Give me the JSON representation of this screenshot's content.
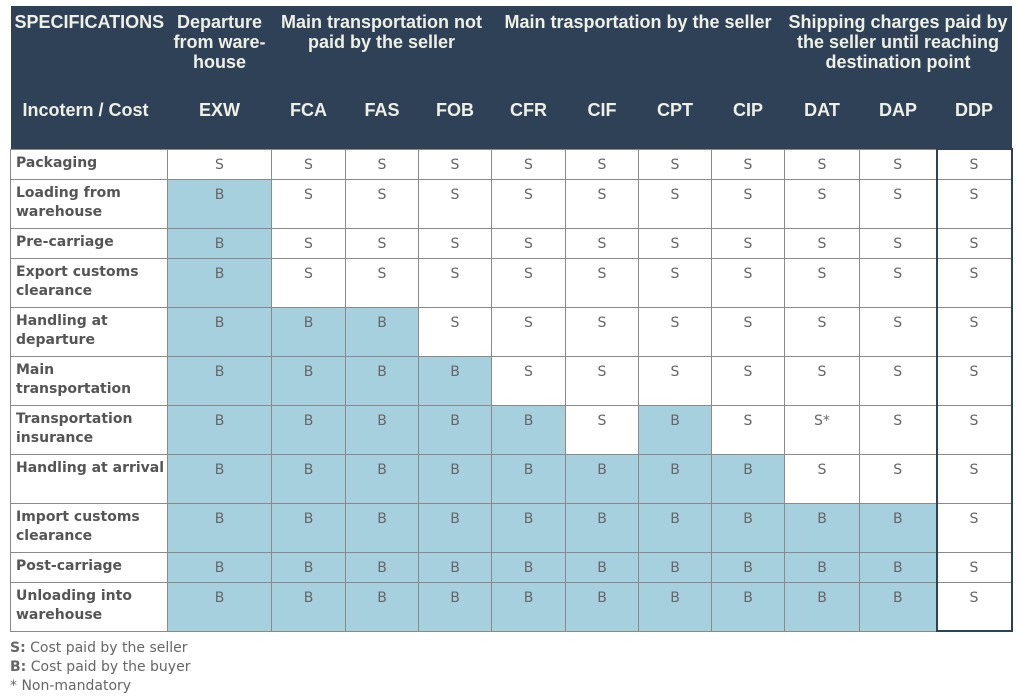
{
  "header": {
    "specifications": "SPECIFICATIONS",
    "row_label": "Incotern / Cost",
    "groups": [
      {
        "label": "Departure from ware- house",
        "span": 1
      },
      {
        "label": "Main transportation not paid by the seller",
        "span": 3
      },
      {
        "label": "Main trasportation by the seller",
        "span": 4
      },
      {
        "label": "Shipping charges paid by the seller until reaching destination point",
        "span": 3
      }
    ],
    "columns": [
      "EXW",
      "FCA",
      "FAS",
      "FOB",
      "CFR",
      "CIF",
      "CPT",
      "CIP",
      "DAT",
      "DAP",
      "DDP"
    ]
  },
  "rows": [
    {
      "label": "Packaging",
      "values": [
        "S",
        "S",
        "S",
        "S",
        "S",
        "S",
        "S",
        "S",
        "S",
        "S",
        "S"
      ]
    },
    {
      "label": "Loading from warehouse",
      "values": [
        "B",
        "S",
        "S",
        "S",
        "S",
        "S",
        "S",
        "S",
        "S",
        "S",
        "S"
      ]
    },
    {
      "label": "Pre-carriage",
      "values": [
        "B",
        "S",
        "S",
        "S",
        "S",
        "S",
        "S",
        "S",
        "S",
        "S",
        "S"
      ]
    },
    {
      "label": "Export customs clearance",
      "values": [
        "B",
        "S",
        "S",
        "S",
        "S",
        "S",
        "S",
        "S",
        "S",
        "S",
        "S"
      ]
    },
    {
      "label": "Handling at departure",
      "values": [
        "B",
        "B",
        "B",
        "S",
        "S",
        "S",
        "S",
        "S",
        "S",
        "S",
        "S"
      ]
    },
    {
      "label": "Main transportation",
      "values": [
        "B",
        "B",
        "B",
        "B",
        "S",
        "S",
        "S",
        "S",
        "S",
        "S",
        "S"
      ]
    },
    {
      "label": "Transportation insurance",
      "values": [
        "B",
        "B",
        "B",
        "B",
        "B",
        "S",
        "B",
        "S",
        "S*",
        "S",
        "S"
      ]
    },
    {
      "label": "Handling at arrival",
      "values": [
        "B",
        "B",
        "B",
        "B",
        "B",
        "B",
        "B",
        "B",
        "S",
        "S",
        "S"
      ]
    },
    {
      "label": "Import customs clearance",
      "values": [
        "B",
        "B",
        "B",
        "B",
        "B",
        "B",
        "B",
        "B",
        "B",
        "B",
        "S"
      ]
    },
    {
      "label": "Post-carriage",
      "values": [
        "B",
        "B",
        "B",
        "B",
        "B",
        "B",
        "B",
        "B",
        "B",
        "B",
        "S"
      ]
    },
    {
      "label": "Unloading into warehouse",
      "values": [
        "B",
        "B",
        "B",
        "B",
        "B",
        "B",
        "B",
        "B",
        "B",
        "B",
        "S"
      ]
    }
  ],
  "legend": {
    "s_key": "S:",
    "s_text": "Cost paid by the seller",
    "b_key": "B:",
    "b_text": "Cost paid by the buyer",
    "note": "* Non-mandatory"
  },
  "colors": {
    "header_bg": "#2f4156",
    "buyer_cell": "#a7d0df",
    "seller_cell": "#ffffff"
  }
}
